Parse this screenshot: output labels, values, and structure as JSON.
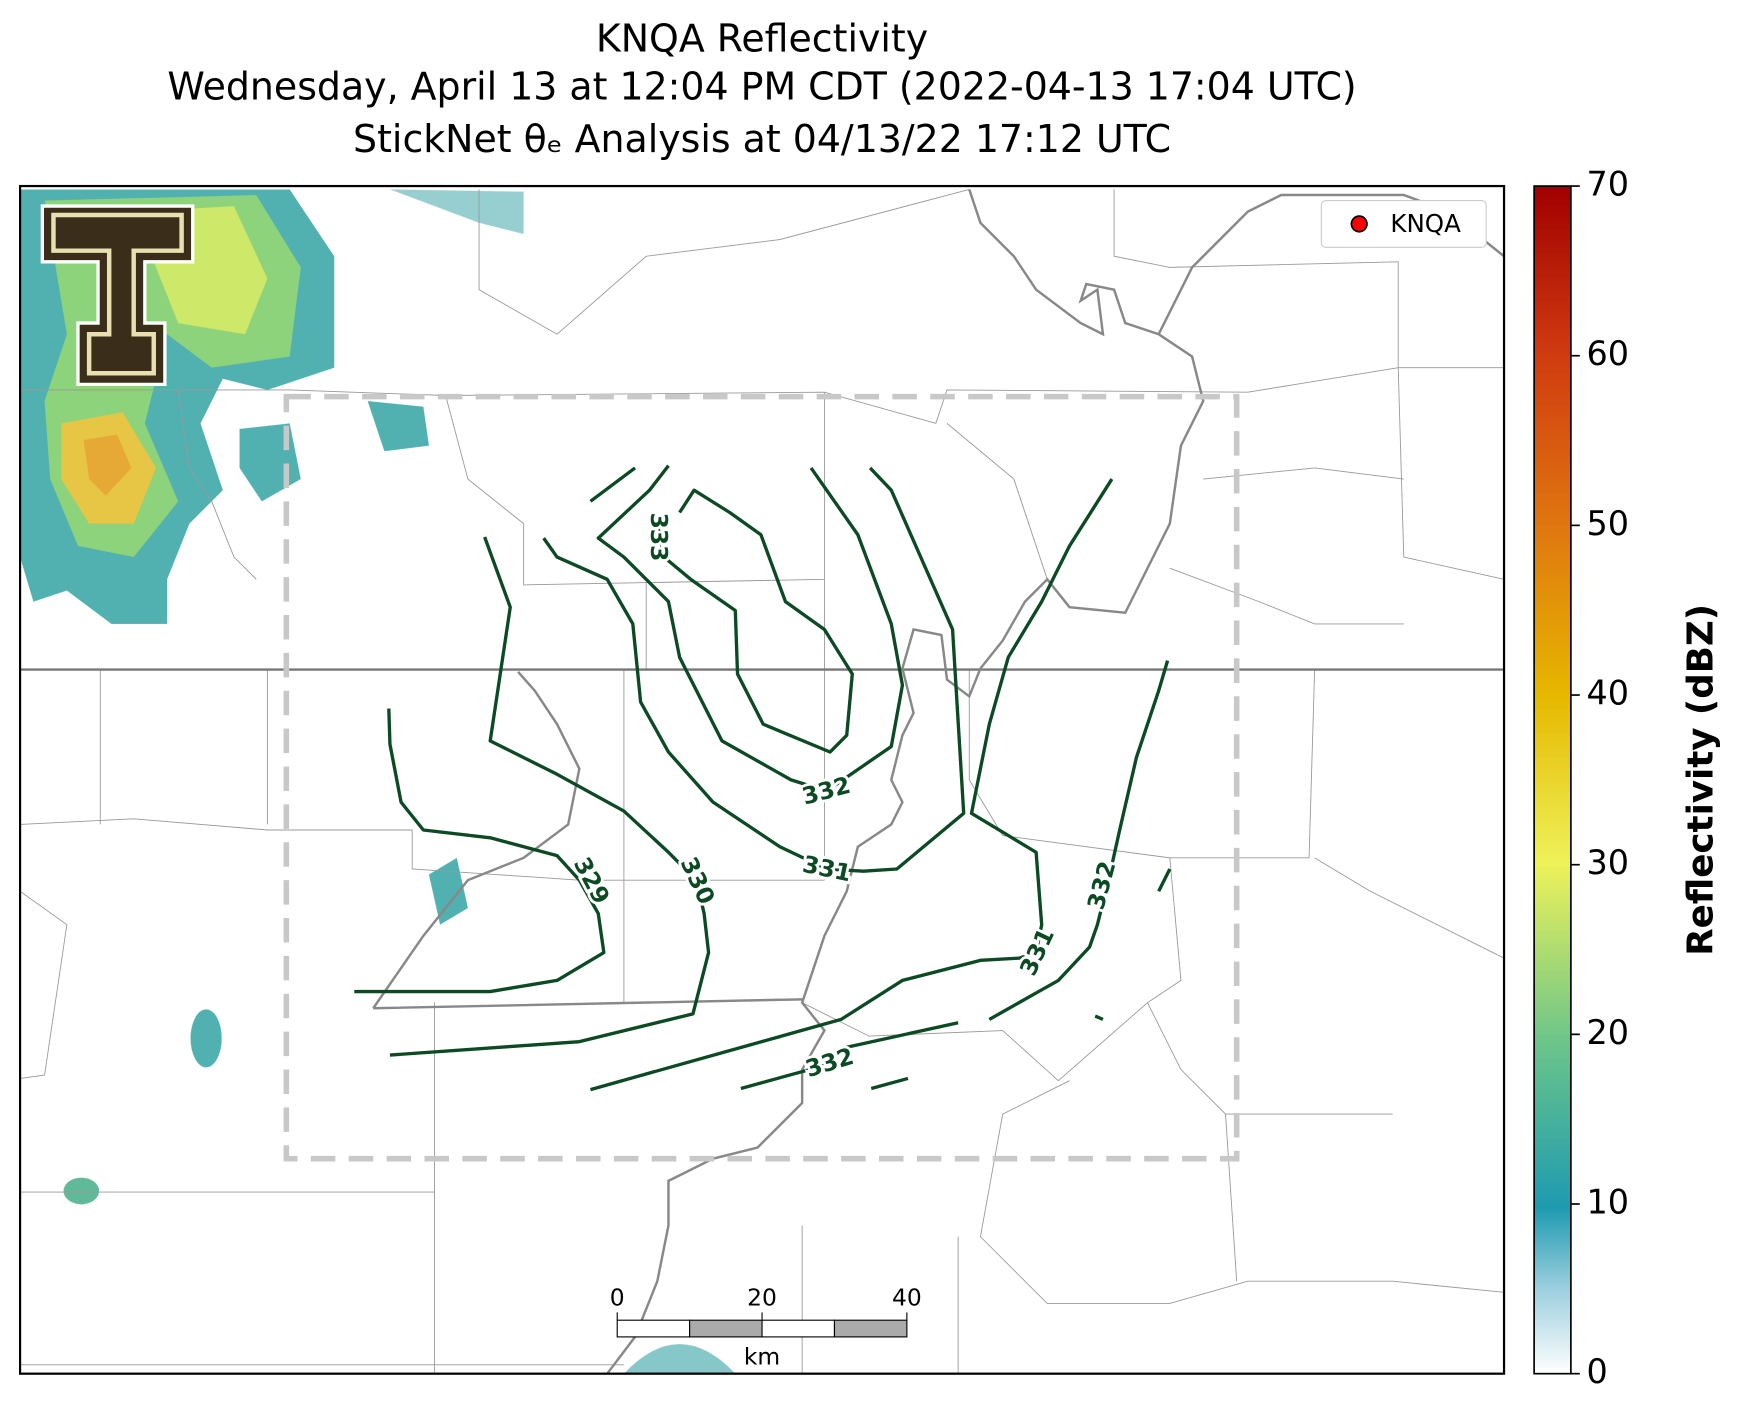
{
  "title": [
    "KNQA Reflectivity",
    "Wednesday, April 13 at 12:04 PM CDT (2022-04-13 17:04 UTC)",
    "StickNet θₑ Analysis at 04/13/22 17:12 UTC"
  ],
  "legend": {
    "label": "KNQA",
    "color": "#ff0000"
  },
  "colorbar": {
    "label": "Reflectivity (dBZ)",
    "lim": [
      0,
      70
    ],
    "ticks": [
      0,
      10,
      20,
      30,
      40,
      50,
      60,
      70
    ]
  },
  "contour_labels": [
    333,
    332,
    331,
    329,
    330,
    331,
    332,
    332
  ],
  "scale_bar": {
    "lim": [
      0,
      40
    ],
    "ticks": [
      0,
      20,
      40
    ],
    "unit": "km"
  }
}
